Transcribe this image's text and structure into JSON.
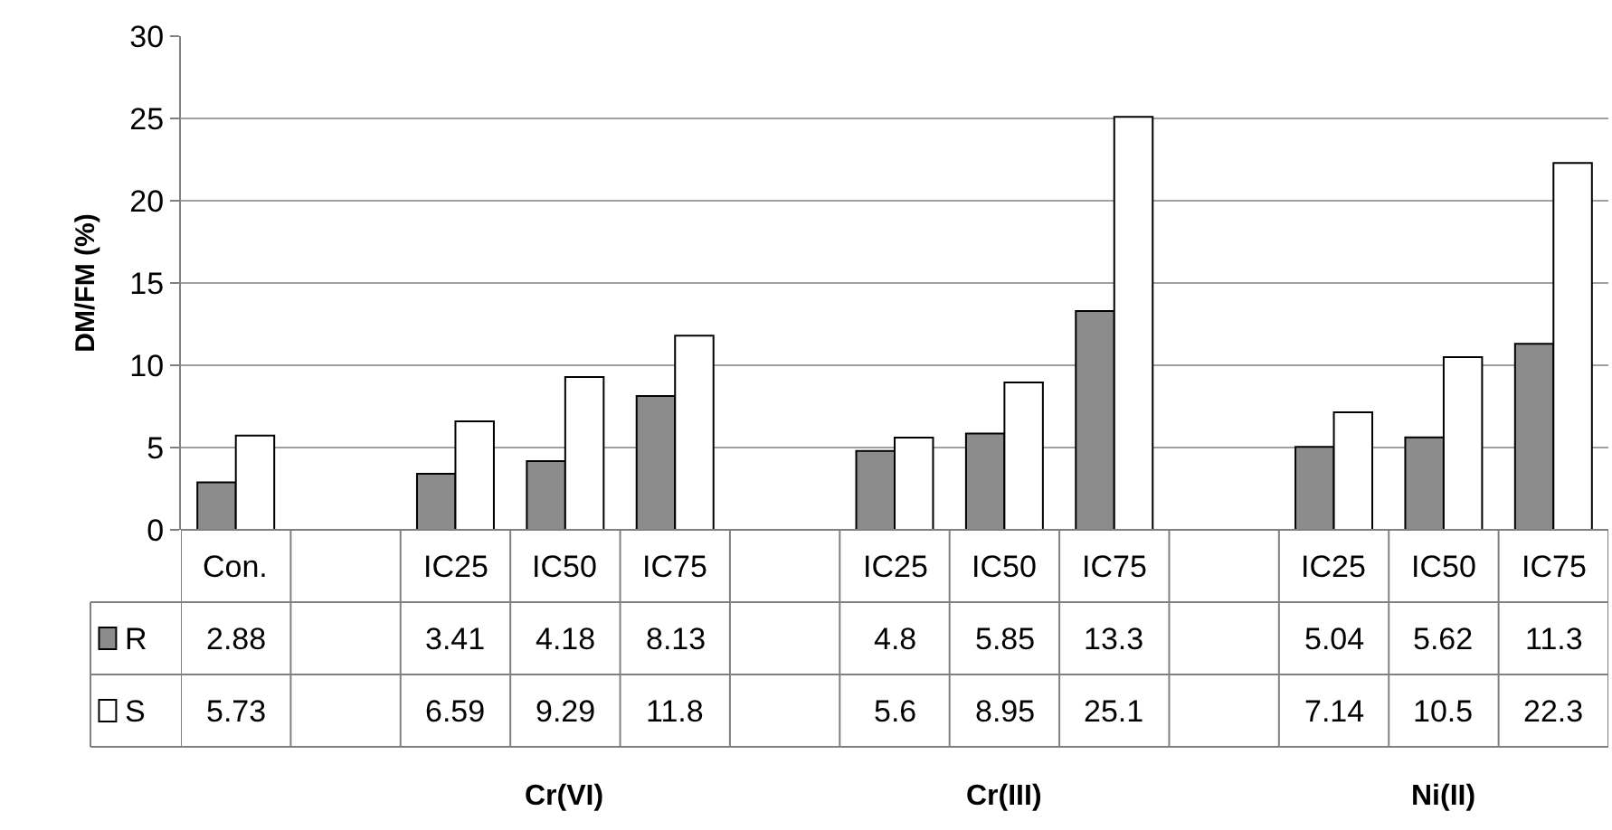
{
  "chart_data": {
    "type": "bar",
    "ylabel": "DM/FM (%)",
    "categories": [
      "Con.",
      null,
      "IC25",
      "IC50",
      "IC75",
      null,
      "IC25",
      "IC50",
      "IC75",
      null,
      "IC25",
      "IC50",
      "IC75"
    ],
    "series": [
      {
        "name": "R",
        "color": "#8c8c8c",
        "values": [
          2.88,
          null,
          3.41,
          4.18,
          8.13,
          null,
          4.8,
          5.85,
          13.3,
          null,
          5.04,
          5.62,
          11.3
        ]
      },
      {
        "name": "S",
        "color": "#ffffff",
        "values": [
          5.73,
          null,
          6.59,
          9.29,
          11.8,
          null,
          5.6,
          8.95,
          25.1,
          null,
          7.14,
          10.5,
          22.3
        ]
      }
    ],
    "ylim": [
      0,
      30
    ],
    "yticks": [
      0,
      5,
      10,
      15,
      20,
      25,
      30
    ],
    "grid": "y",
    "legend": "bottom left",
    "data_labels": true,
    "annotations": [
      "Cr(VI)",
      "Cr(III)",
      "Ni(II)"
    ]
  }
}
